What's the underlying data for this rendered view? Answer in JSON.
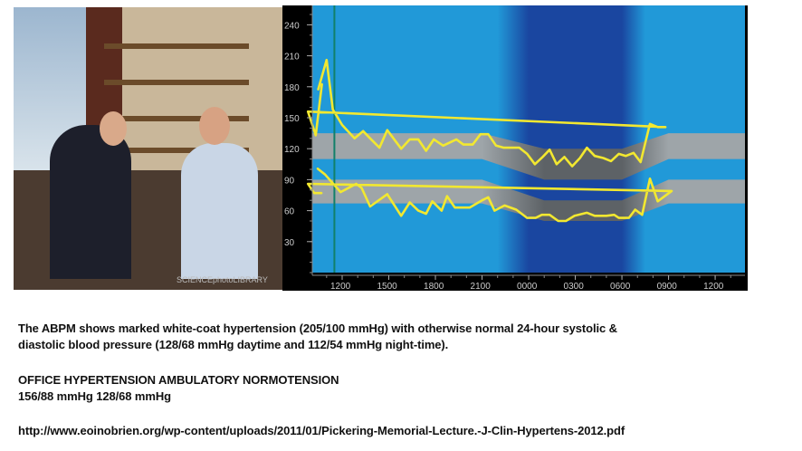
{
  "photo": {
    "watermark": "SCIENCEphotoLIBRARY"
  },
  "chart_data": {
    "type": "line",
    "title": "",
    "xlabel": "",
    "ylabel": "",
    "x_tick_labels": [
      "1200",
      "1500",
      "1800",
      "2100",
      "0000",
      "0300",
      "0600",
      "0900",
      "1200"
    ],
    "y_ticks": [
      30,
      60,
      90,
      120,
      150,
      180,
      210,
      240
    ],
    "ylim": [
      0,
      258
    ],
    "xlim_clock": [
      "10:00",
      "13:40"
    ],
    "grid": false,
    "background": {
      "day_color": "#2199d8",
      "night_color": "#1a46a0",
      "night_start": "22:00",
      "night_end": "07:30"
    },
    "marker_line": {
      "time": "11:30",
      "color": "#11806a"
    },
    "normal_bands": [
      {
        "name_hidden": true,
        "points": [
          {
            "t": "10:00",
            "low": 110,
            "high": 135
          },
          {
            "t": "21:00",
            "low": 110,
            "high": 135
          },
          {
            "t": "01:00",
            "low": 90,
            "high": 120
          },
          {
            "t": "06:00",
            "low": 90,
            "high": 120
          },
          {
            "t": "09:00",
            "low": 110,
            "high": 135
          },
          {
            "t": "13:40",
            "low": 110,
            "high": 135
          }
        ],
        "day_color": "#9ea5a9",
        "night_color": "#5d6266"
      },
      {
        "name_hidden": true,
        "points": [
          {
            "t": "10:00",
            "low": 67,
            "high": 90
          },
          {
            "t": "21:00",
            "low": 67,
            "high": 90
          },
          {
            "t": "01:00",
            "low": 50,
            "high": 70
          },
          {
            "t": "06:00",
            "low": 50,
            "high": 70
          },
          {
            "t": "09:00",
            "low": 67,
            "high": 90
          },
          {
            "t": "13:40",
            "low": 67,
            "high": 90
          }
        ],
        "day_color": "#9ea5a9",
        "night_color": "#5d6266"
      }
    ],
    "series_color": "#f2e830",
    "series": [
      {
        "x": [
          "10:27",
          "11:00",
          "11:24",
          "12:00",
          "12:48",
          "13:21",
          "13:48",
          "14:24",
          "14:54",
          "15:48",
          "16:21",
          "16:54",
          "17:24",
          "17:54",
          "18:30",
          "19:21",
          "19:48",
          "20:24",
          "20:54",
          "21:24",
          "21:54",
          "22:24",
          "23:24",
          "23:54",
          "00:24",
          "00:54",
          "01:21",
          "01:48",
          "02:18",
          "02:48",
          "03:18",
          "03:45",
          "04:15",
          "04:48",
          "05:18",
          "05:48",
          "06:15",
          "06:45",
          "07:12",
          "07:48",
          "08:18",
          "08:48",
          "09:48",
          "10:18",
          "10:42"
        ],
        "y": [
          177,
          206,
          158,
          143,
          130,
          137,
          130,
          121,
          138,
          120,
          129,
          129,
          118,
          129,
          123,
          129,
          124,
          124,
          134,
          134,
          123,
          121,
          121,
          115,
          105,
          112,
          119,
          105,
          112,
          103,
          111,
          121,
          113,
          111,
          108,
          115,
          113,
          116,
          107,
          144,
          141,
          141,
          156,
          133,
          183
        ]
      },
      {
        "x": [
          "10:24",
          "10:54",
          "11:54",
          "12:54",
          "13:15",
          "13:48",
          "14:54",
          "15:48",
          "16:21",
          "16:54",
          "17:24",
          "17:48",
          "18:24",
          "18:45",
          "19:15",
          "20:12",
          "21:00",
          "21:24",
          "21:48",
          "22:27",
          "23:12",
          "23:54",
          "00:27",
          "00:51",
          "01:21",
          "01:54",
          "02:24",
          "02:57",
          "03:45",
          "04:15",
          "05:00",
          "05:30",
          "05:48",
          "06:27",
          "06:51",
          "07:18",
          "07:48",
          "08:18",
          "09:12",
          "09:48",
          "10:12",
          "10:42"
        ],
        "y": [
          101,
          95,
          78,
          86,
          82,
          64,
          76,
          55,
          68,
          60,
          57,
          69,
          60,
          74,
          63,
          63,
          70,
          73,
          60,
          65,
          61,
          53,
          53,
          56,
          56,
          50,
          50,
          55,
          58,
          55,
          55,
          56,
          53,
          53,
          61,
          56,
          91,
          69,
          79,
          86,
          77,
          77
        ]
      }
    ]
  },
  "caption": {
    "line1": "The ABPM shows marked white-coat hypertension (205/100 mmHg) with otherwise normal 24-hour systolic &",
    "line2": "diastolic blood pressure (128/68 mmHg daytime and 112/54 mmHg night-time).",
    "line3": "OFFICE HYPERTENSION AMBULATORY NORMOTENSION",
    "line4": "156/88 mmHg 128/68 mmHg",
    "url": "http://www.eoinobrien.org/wp-content/uploads/2011/01/Pickering-Memorial-Lecture.-J-Clin-Hypertens-2012.pdf"
  }
}
